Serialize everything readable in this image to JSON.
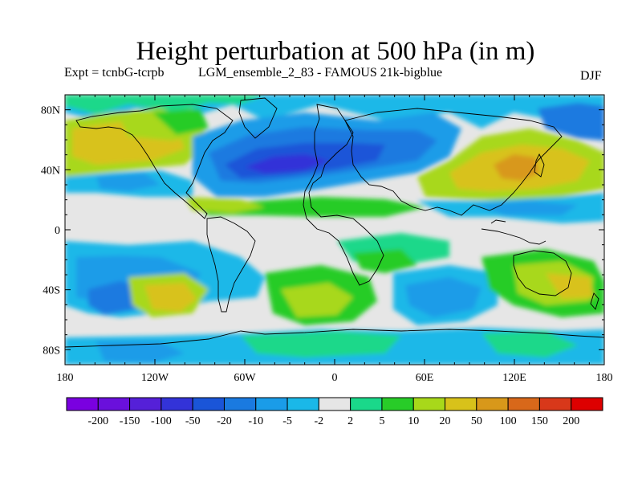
{
  "header": {
    "title": "Height perturbation at 500 hPa (in m)",
    "experiment": "Expt = tcnbG-tcrpb",
    "run": "LGM_ensemble_2_83 - FAMOUS 21k-bigblue",
    "season": "DJF"
  },
  "chart_data": {
    "type": "heatmap",
    "title": "Height perturbation at 500 hPa (in m)",
    "subtitle_left": "Expt = tcnbG-tcrpb",
    "subtitle_center": "LGM_ensemble_2_83 - FAMOUS 21k-bigblue",
    "subtitle_right": "DJF",
    "xlim": [
      -180,
      180
    ],
    "ylim": [
      -90,
      90
    ],
    "x_ticks": [
      {
        "value": -180,
        "label": "180"
      },
      {
        "value": -120,
        "label": "120W"
      },
      {
        "value": -60,
        "label": "60W"
      },
      {
        "value": 0,
        "label": "0"
      },
      {
        "value": 60,
        "label": "60E"
      },
      {
        "value": 120,
        "label": "120E"
      },
      {
        "value": 180,
        "label": "180"
      }
    ],
    "y_ticks": [
      {
        "value": 80,
        "label": "80N"
      },
      {
        "value": 40,
        "label": "40N"
      },
      {
        "value": 0,
        "label": "0"
      },
      {
        "value": -40,
        "label": "40S"
      },
      {
        "value": -80,
        "label": "80S"
      }
    ],
    "colorbar": {
      "levels": [
        "-200",
        "-150",
        "-100",
        "-50",
        "-20",
        "-10",
        "-5",
        "-2",
        "2",
        "5",
        "10",
        "20",
        "50",
        "100",
        "150",
        "200"
      ],
      "colors": [
        "#7a00e0",
        "#6a10dc",
        "#5520d8",
        "#3333d8",
        "#1a55d8",
        "#1a7ae0",
        "#1a9ce8",
        "#1ab8e8",
        "#e6e6e6",
        "#1ad88a",
        "#28cc28",
        "#a8d81a",
        "#d8c21a",
        "#d8981a",
        "#d8681a",
        "#d8381a",
        "#dd0000"
      ]
    },
    "features": [
      {
        "lon": -35,
        "lat": 42,
        "level": "-50",
        "note": "strong negative centre over North Atlantic"
      },
      {
        "lon": -150,
        "lat": 45,
        "level": "20",
        "note": "positive anomaly North Pacific"
      },
      {
        "lon": 125,
        "lat": 42,
        "level": "50",
        "note": "positive maximum near Japan"
      },
      {
        "lon": -135,
        "lat": -45,
        "level": "20",
        "note": "positive anomaly South Pacific"
      },
      {
        "lon": 10,
        "lat": -50,
        "level": "10",
        "note": "positive anomaly South Atlantic"
      },
      {
        "lon": 55,
        "lat": -55,
        "level": "-20",
        "note": "negative anomaly Southern Indian Ocean"
      }
    ]
  }
}
